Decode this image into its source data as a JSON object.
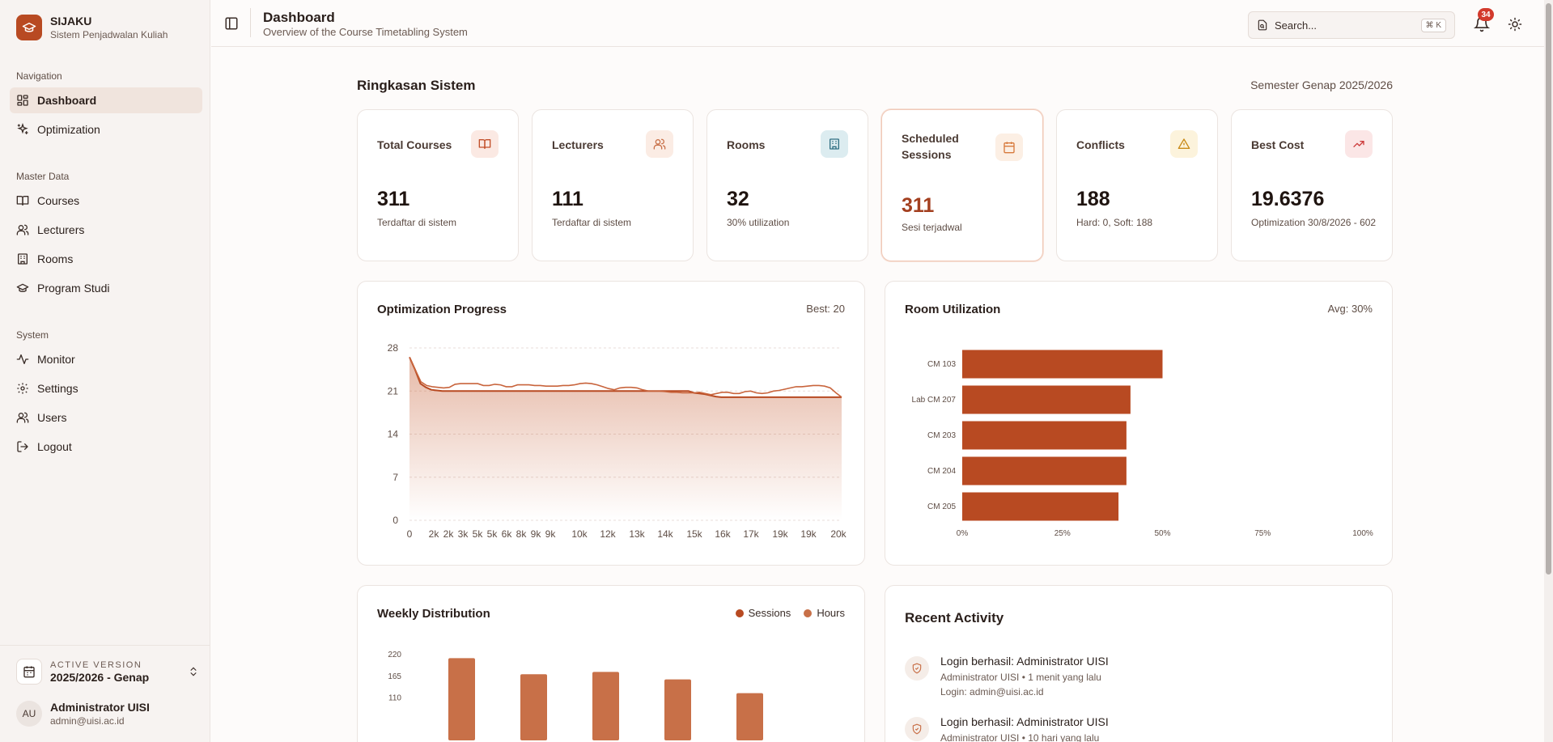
{
  "brand": {
    "name": "SIJAKU",
    "subtitle": "Sistem Penjadwalan Kuliah"
  },
  "sidebar": {
    "groups": [
      {
        "label": "Navigation",
        "items": [
          {
            "label": "Dashboard",
            "icon": "dashboard-icon",
            "active": true
          },
          {
            "label": "Optimization",
            "icon": "sparkles-icon"
          }
        ]
      },
      {
        "label": "Master Data",
        "items": [
          {
            "label": "Courses",
            "icon": "book-icon"
          },
          {
            "label": "Lecturers",
            "icon": "users-icon"
          },
          {
            "label": "Rooms",
            "icon": "building-icon"
          },
          {
            "label": "Program Studi",
            "icon": "graduation-cap-icon"
          }
        ]
      },
      {
        "label": "System",
        "items": [
          {
            "label": "Monitor",
            "icon": "activity-icon"
          },
          {
            "label": "Settings",
            "icon": "gear-icon"
          },
          {
            "label": "Users",
            "icon": "users-icon"
          },
          {
            "label": "Logout",
            "icon": "logout-icon"
          }
        ]
      }
    ],
    "version": {
      "label": "ACTIVE VERSION",
      "value": "2025/2026 - Genap"
    },
    "user": {
      "initials": "AU",
      "name": "Administrator UISI",
      "email": "admin@uisi.ac.id"
    }
  },
  "header": {
    "title": "Dashboard",
    "subtitle": "Overview of the Course Timetabling System",
    "search_placeholder": "Search...",
    "search_shortcut": "⌘ K",
    "notification_count": "34"
  },
  "summary": {
    "title": "Ringkasan Sistem",
    "semester": "Semester Genap 2025/2026",
    "cards": [
      {
        "label": "Total Courses",
        "value": "311",
        "note": "Terdaftar di sistem",
        "icon": "book-icon",
        "icon_bg": "#fbe9e3",
        "icon_color": "#c2502a"
      },
      {
        "label": "Lecturers",
        "value": "111",
        "note": "Terdaftar di sistem",
        "icon": "users-icon",
        "icon_bg": "#fbece4",
        "icon_color": "#c87048"
      },
      {
        "label": "Rooms",
        "value": "32",
        "note": "30% utilization",
        "icon": "building-icon",
        "icon_bg": "#dcecf0",
        "icon_color": "#2f6f82"
      },
      {
        "label": "Scheduled Sessions",
        "value": "311",
        "note": "Sesi terjadwal",
        "icon": "calendar-icon",
        "icon_bg": "#fcefe4",
        "icon_color": "#d77a3c",
        "highlight": true,
        "value_color": "#a33f1f"
      },
      {
        "label": "Conflicts",
        "value": "188",
        "note": "Hard: 0, Soft: 188",
        "icon": "alert-triangle-icon",
        "icon_bg": "#fcf3dc",
        "icon_color": "#c98a18"
      },
      {
        "label": "Best Cost",
        "value": "19.6376",
        "note": "Optimization 30/8/2026 - 602",
        "icon": "trending-up-icon",
        "icon_bg": "#fbe6e6",
        "icon_color": "#cc3b3b"
      }
    ]
  },
  "optimization_panel": {
    "title": "Optimization Progress",
    "meta": "Best: 20"
  },
  "room_panel": {
    "title": "Room Utilization",
    "meta": "Avg: 30%"
  },
  "weekly_panel": {
    "title": "Weekly Distribution",
    "legend": [
      "Sessions",
      "Hours"
    ]
  },
  "activity_panel": {
    "title": "Recent Activity",
    "items": [
      {
        "title": "Login berhasil: Administrator UISI",
        "meta": "Administrator UISI • 1 menit yang lalu",
        "detail": "Login: admin@uisi.ac.id"
      },
      {
        "title": "Login berhasil: Administrator UISI",
        "meta": "Administrator UISI • 10 hari yang lalu",
        "detail": ""
      }
    ]
  },
  "chart_data": [
    {
      "type": "area",
      "title": "Optimization Progress",
      "x_tick_labels": [
        "0",
        "2k",
        "2k",
        "3k",
        "5k",
        "5k",
        "6k",
        "8k",
        "9k",
        "9k",
        "10k",
        "12k",
        "13k",
        "14k",
        "15k",
        "16k",
        "17k",
        "19k",
        "19k",
        "20k"
      ],
      "ylim": [
        0,
        28
      ],
      "y_ticks": [
        0,
        7,
        14,
        21,
        28
      ],
      "series": [
        {
          "values": [
            26.5,
            24.5,
            22.2,
            21.6,
            21.2,
            21.1,
            21,
            21,
            21,
            21,
            21,
            21,
            21,
            21,
            21,
            21,
            21,
            21,
            21,
            21,
            21,
            21,
            21,
            21,
            21,
            21,
            21,
            21,
            21,
            21,
            21,
            21,
            21,
            21,
            21,
            21,
            21,
            21,
            21,
            21,
            21,
            21,
            21,
            21,
            21,
            21,
            21,
            21,
            21,
            21,
            21,
            21,
            20.7,
            20.6,
            20.5,
            20.3,
            20.1,
            20,
            20,
            20,
            20,
            20,
            20,
            20,
            20,
            20,
            20,
            20,
            20,
            20,
            20,
            20,
            20,
            20,
            20,
            20,
            20,
            20,
            20,
            20
          ]
        },
        {
          "values": [
            26.5,
            24.5,
            22.5,
            21.9,
            21.7,
            21.6,
            21.5,
            21.6,
            22.1,
            22.2,
            22.2,
            22.2,
            22.2,
            21.9,
            21.9,
            22.1,
            22,
            21.7,
            21.7,
            22,
            22,
            22,
            21.9,
            21.9,
            21.8,
            21.8,
            21.8,
            21.9,
            21.9,
            22,
            22.2,
            22.3,
            22.2,
            22,
            21.7,
            21.4,
            21.2,
            21.5,
            21.6,
            21.6,
            21.5,
            21.2,
            21,
            21,
            21,
            20.9,
            20.8,
            20.8,
            20.7,
            20.7,
            20.7,
            20.8,
            20.6,
            20.4,
            20.6,
            20.8,
            20.8,
            20.6,
            20.6,
            20.9,
            21,
            20.7,
            20.6,
            20.7,
            21,
            21.1,
            21.3,
            21.5,
            21.7,
            21.7,
            21.8,
            21.9,
            21.9,
            21.8,
            21.5,
            20.7,
            20
          ]
        }
      ],
      "grid": true
    },
    {
      "type": "bar",
      "orientation": "horizontal",
      "title": "Room Utilization",
      "categories": [
        "CM 103",
        "Lab CM 207",
        "CM 203",
        "CM 204",
        "CM 205"
      ],
      "values": [
        50,
        42,
        41,
        41,
        39
      ],
      "xlim": [
        0,
        100
      ],
      "x_tick_labels": [
        "0%",
        "25%",
        "50%",
        "75%",
        "100%"
      ],
      "color": "#b84a22"
    },
    {
      "type": "bar",
      "title": "Weekly Distribution",
      "series_names": [
        "Sessions",
        "Hours"
      ],
      "values": [
        209,
        168,
        174,
        155,
        120
      ],
      "y_ticks": [
        110,
        165,
        220
      ],
      "ylim": [
        0,
        220
      ],
      "color": "#c87048"
    }
  ]
}
